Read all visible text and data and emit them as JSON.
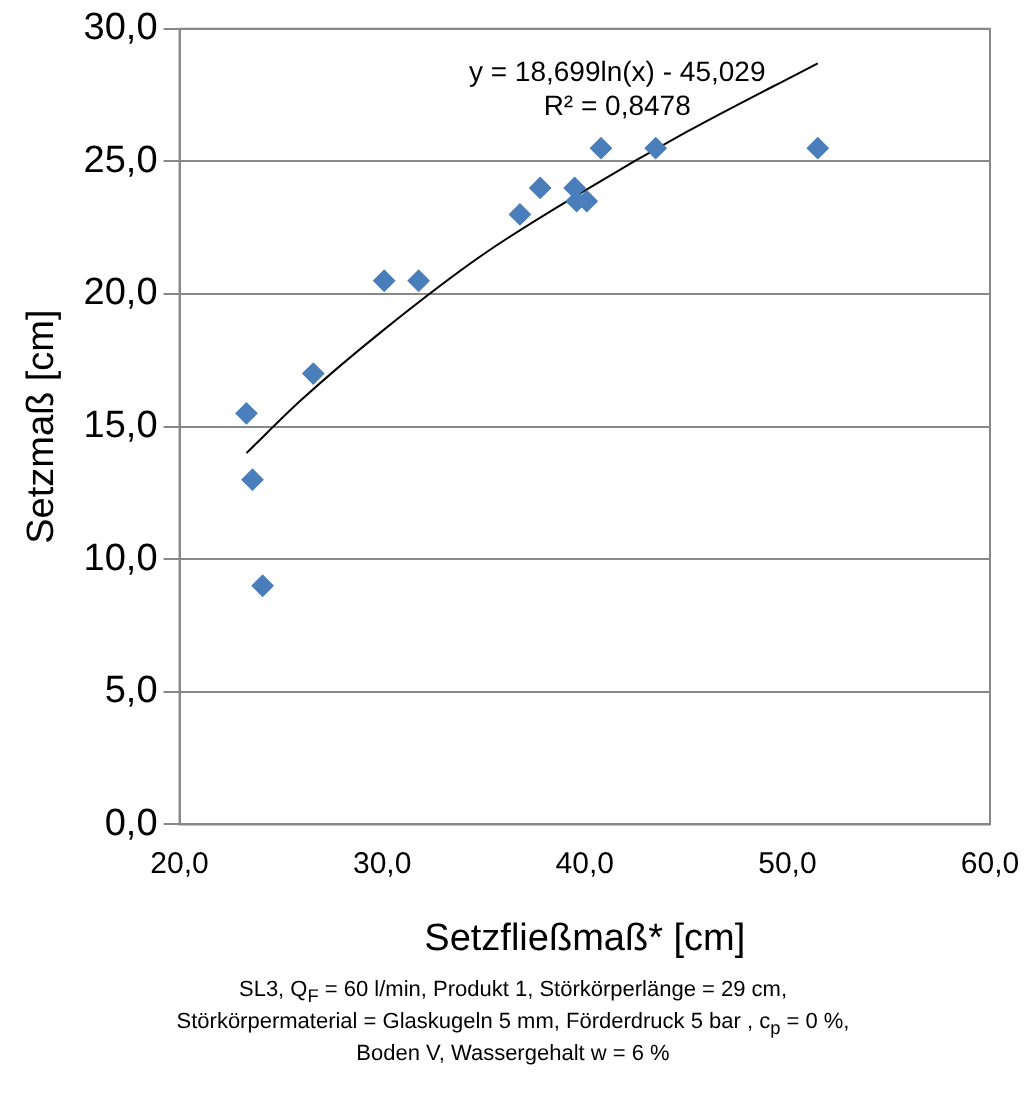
{
  "chart_data": {
    "type": "scatter",
    "xlabel": "Setzfließmaß* [cm]",
    "ylabel": "Setzmaß [cm]",
    "series": [
      {
        "color": "#4a7ebb",
        "x": [
          23.3,
          23.6,
          24.1,
          26.6,
          30.1,
          31.8,
          36.8,
          37.8,
          39.5,
          39.6,
          40.1,
          40.8,
          43.5,
          51.5
        ],
        "values": [
          15.5,
          13.0,
          9.0,
          17.0,
          20.5,
          20.5,
          23.0,
          24.0,
          24.0,
          23.5,
          23.5,
          25.5,
          25.5,
          25.5
        ]
      },
      {
        "type": "line",
        "color": "#000000",
        "marker": "none",
        "x": [
          23.3,
          26,
          30,
          35,
          40,
          45,
          51.5
        ],
        "values": [
          14.0,
          16.0,
          18.6,
          21.5,
          23.9,
          26.1,
          28.7
        ]
      }
    ],
    "marker": "diamond",
    "xlim": [
      20,
      60
    ],
    "ylim": [
      0,
      30
    ],
    "xticks": [
      {
        "value": 20,
        "label": "20,0"
      },
      {
        "value": 30,
        "label": "30,0"
      },
      {
        "value": 40,
        "label": "40,0"
      },
      {
        "value": 50,
        "label": "50,0"
      },
      {
        "value": 60,
        "label": "60,0"
      }
    ],
    "yticks": [
      {
        "value": 0,
        "label": "0,0"
      },
      {
        "value": 5,
        "label": "5,0"
      },
      {
        "value": 10,
        "label": "10,0"
      },
      {
        "value": 15,
        "label": "15,0"
      },
      {
        "value": 20,
        "label": "20,0"
      },
      {
        "value": 25,
        "label": "25,0"
      },
      {
        "value": 30,
        "label": "30,0"
      }
    ],
    "grid": "y",
    "legend": false,
    "annotations": [
      "y = 18,699ln(x) - 45,029",
      "R² = 0,8478",
      "SL3, Q$_{F}$ = 60 l/min, Produkt 1, Störkörperlänge = 29 cm,",
      "Störkörpermaterial = Glaskugeln 5 mm, Förderdruck 5 bar , c$_{p}$ = 0 %,",
      "Boden V, Wassergehalt w = 6 %"
    ]
  }
}
